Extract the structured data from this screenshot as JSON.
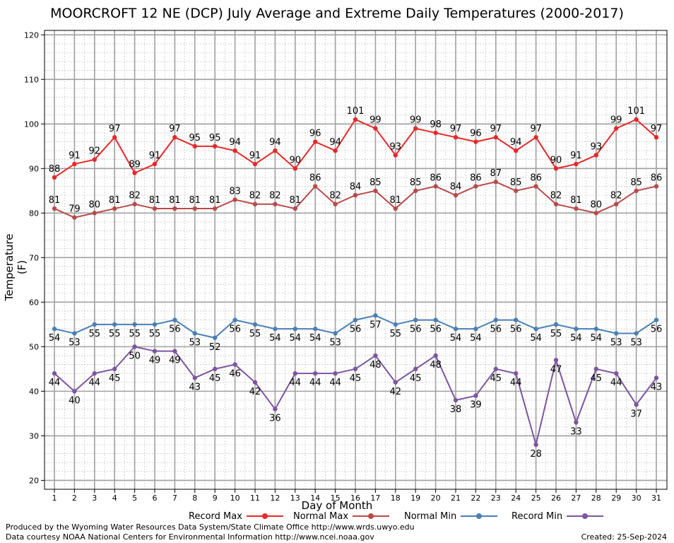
{
  "chart_data": {
    "type": "line",
    "title": "MOORCROFT 12 NE (DCP) July Average and Extreme Daily Temperatures (2000-2017)",
    "xlabel": "Day of Month",
    "ylabel": "Temperature (F)",
    "ylim": [
      18,
      121
    ],
    "yticks": [
      20,
      30,
      40,
      50,
      60,
      70,
      80,
      90,
      100,
      110,
      120
    ],
    "grid": true,
    "legend_placement": "bottom",
    "x": [
      1,
      2,
      3,
      4,
      5,
      6,
      7,
      8,
      9,
      10,
      11,
      12,
      13,
      14,
      15,
      16,
      17,
      18,
      19,
      20,
      21,
      22,
      23,
      24,
      25,
      26,
      27,
      28,
      29,
      30,
      31
    ],
    "series": [
      {
        "name": "Record Max",
        "color": "#e8282a",
        "label_pos": "above",
        "values": [
          88,
          91,
          92,
          97,
          89,
          91,
          97,
          95,
          95,
          94,
          91,
          94,
          90,
          96,
          94,
          101,
          99,
          93,
          99,
          98,
          97,
          96,
          97,
          94,
          97,
          90,
          91,
          93,
          99,
          101,
          97
        ]
      },
      {
        "name": "Normal Max",
        "color": "#b94a4a",
        "label_pos": "above",
        "values": [
          81,
          79,
          80,
          81,
          82,
          81,
          81,
          81,
          81,
          83,
          82,
          82,
          81,
          86,
          82,
          84,
          85,
          81,
          85,
          86,
          84,
          86,
          87,
          85,
          86,
          82,
          81,
          80,
          82,
          85,
          86
        ]
      },
      {
        "name": "Normal Min",
        "color": "#4a7fb5",
        "label_pos": "below",
        "values": [
          54,
          53,
          55,
          55,
          55,
          55,
          56,
          53,
          52,
          56,
          55,
          54,
          54,
          54,
          53,
          56,
          57,
          55,
          56,
          56,
          54,
          54,
          56,
          56,
          54,
          55,
          54,
          54,
          53,
          53,
          56
        ]
      },
      {
        "name": "Record Min",
        "color": "#7d55a0",
        "label_pos": "below",
        "values": [
          44,
          40,
          44,
          45,
          50,
          49,
          49,
          43,
          45,
          46,
          42,
          36,
          44,
          44,
          44,
          45,
          48,
          42,
          45,
          48,
          38,
          39,
          45,
          44,
          28,
          47,
          33,
          45,
          44,
          37,
          43
        ]
      }
    ]
  },
  "legend": {
    "record_max": "Record Max",
    "normal_max": "Normal Max",
    "normal_min": "Normal Min",
    "record_min": "Record Min"
  },
  "credits": {
    "produced_by": "Produced by the Wyoming Water Resources Data System/State Climate Office http://www.wrds.uwyo.edu",
    "data_courtesy": "Data courtesy NOAA National Centers for Environmental Information http://www.ncei.noaa.gov",
    "created": "Created:  25-Sep-2024"
  },
  "colors": {
    "record_max": "#e8282a",
    "normal_max": "#b94a4a",
    "normal_min": "#4a7fb5",
    "record_min": "#7d55a0"
  }
}
